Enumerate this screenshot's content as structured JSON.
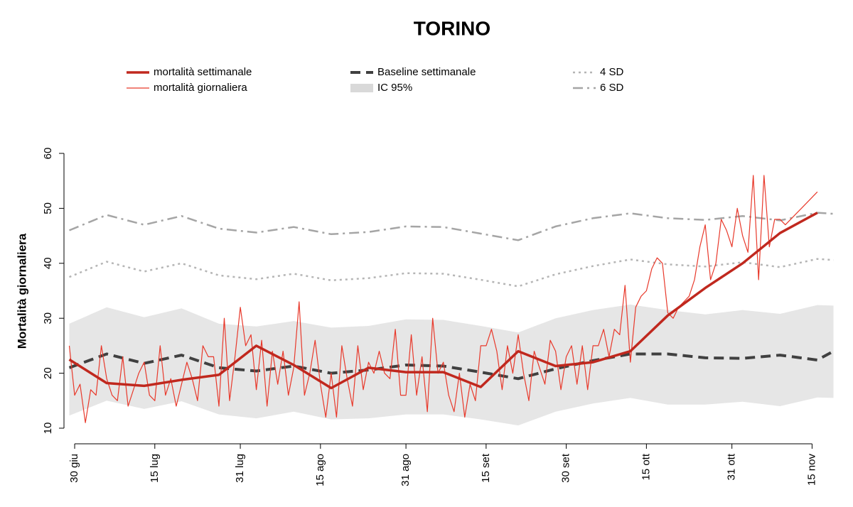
{
  "chart_data": {
    "type": "line",
    "title": "TORINO",
    "ylabel": "Mortalità giornaliera",
    "xlim": [
      "06-28",
      "11-20"
    ],
    "ylim": [
      10,
      60
    ],
    "yticks": [
      10,
      20,
      30,
      40,
      50,
      60
    ],
    "xticks": [
      {
        "value": "06-30",
        "label": "30 giu"
      },
      {
        "value": "07-15",
        "label": "15 lug"
      },
      {
        "value": "07-31",
        "label": "31 lug"
      },
      {
        "value": "08-15",
        "label": "15 ago"
      },
      {
        "value": "08-31",
        "label": "31 ago"
      },
      {
        "value": "09-15",
        "label": "15 set"
      },
      {
        "value": "09-30",
        "label": "30 set"
      },
      {
        "value": "10-15",
        "label": "15 ott"
      },
      {
        "value": "10-31",
        "label": "31 ott"
      },
      {
        "value": "11-15",
        "label": "15 nov"
      }
    ],
    "series": [
      {
        "name": "mortalità settimanale",
        "color": "#c0281e",
        "style": "solid",
        "width": 3.5,
        "x": [
          "06-29",
          "07-06",
          "07-13",
          "07-20",
          "07-27",
          "08-03",
          "08-10",
          "08-17",
          "08-24",
          "08-31",
          "09-07",
          "09-14",
          "09-21",
          "09-28",
          "10-05",
          "10-12",
          "10-19",
          "10-26",
          "11-02",
          "11-09",
          "11-16"
        ],
        "values": [
          22.5,
          18.2,
          17.7,
          18.8,
          19.7,
          25,
          21.5,
          17.3,
          21,
          20.2,
          20.2,
          17.5,
          24,
          21.3,
          22,
          24,
          30.5,
          35.5,
          40,
          45.5,
          49.2
        ]
      },
      {
        "name": "mortalità giornaliera",
        "color": "#e8392b",
        "style": "solid",
        "width": 1.2,
        "x": [
          "06-29",
          "06-30",
          "07-01",
          "07-02",
          "07-03",
          "07-04",
          "07-05",
          "07-06",
          "07-07",
          "07-08",
          "07-09",
          "07-10",
          "07-11",
          "07-12",
          "07-13",
          "07-14",
          "07-15",
          "07-16",
          "07-17",
          "07-18",
          "07-19",
          "07-20",
          "07-21",
          "07-22",
          "07-23",
          "07-24",
          "07-25",
          "07-26",
          "07-27",
          "07-28",
          "07-29",
          "07-30",
          "07-31",
          "08-01",
          "08-02",
          "08-03",
          "08-04",
          "08-05",
          "08-06",
          "08-07",
          "08-08",
          "08-09",
          "08-10",
          "08-11",
          "08-12",
          "08-13",
          "08-14",
          "08-15",
          "08-16",
          "08-17",
          "08-18",
          "08-19",
          "08-20",
          "08-21",
          "08-22",
          "08-23",
          "08-24",
          "08-25",
          "08-26",
          "08-27",
          "08-28",
          "08-29",
          "08-30",
          "08-31",
          "09-01",
          "09-02",
          "09-03",
          "09-04",
          "09-05",
          "09-06",
          "09-07",
          "09-08",
          "09-09",
          "09-10",
          "09-11",
          "09-12",
          "09-13",
          "09-14",
          "09-15",
          "09-16",
          "09-17",
          "09-18",
          "09-19",
          "09-20",
          "09-21",
          "09-22",
          "09-23",
          "09-24",
          "09-25",
          "09-26",
          "09-27",
          "09-28",
          "09-29",
          "09-30",
          "10-01",
          "10-02",
          "10-03",
          "10-04",
          "10-05",
          "10-06",
          "10-07",
          "10-08",
          "10-09",
          "10-10",
          "10-11",
          "10-12",
          "10-13",
          "10-14",
          "10-15",
          "10-16",
          "10-17",
          "10-18",
          "10-19",
          "10-20",
          "10-21",
          "10-22",
          "10-23",
          "10-24",
          "10-25",
          "10-26",
          "10-27",
          "10-28",
          "10-29",
          "10-30",
          "10-31",
          "11-01",
          "11-02",
          "11-03",
          "11-04",
          "11-05",
          "11-06",
          "11-07",
          "11-08",
          "11-09",
          "11-10",
          "11-11",
          "11-12",
          "11-13",
          "11-14",
          "11-15",
          "11-16"
        ],
        "values": [
          25,
          16,
          18,
          11,
          17,
          16,
          25,
          19,
          16,
          15,
          23,
          14,
          17,
          20,
          22,
          16,
          15,
          25,
          16,
          19,
          14,
          18,
          22,
          19,
          15,
          25,
          23,
          23,
          14,
          30,
          15,
          23,
          32,
          25,
          27,
          17,
          26,
          14,
          24,
          18,
          24,
          16,
          21,
          33,
          16,
          20,
          26,
          18,
          12,
          20,
          12,
          25,
          19,
          14,
          25,
          17,
          22,
          20,
          24,
          20,
          19,
          28,
          16,
          16,
          27,
          16,
          23,
          13,
          30,
          20,
          22,
          16,
          13,
          20,
          12,
          18,
          15,
          25,
          25,
          28,
          24,
          17,
          25,
          20,
          27,
          20,
          15,
          24,
          21,
          18,
          26,
          24,
          17,
          23,
          25,
          18,
          25,
          17,
          25,
          25,
          28,
          23,
          28,
          27,
          36,
          22,
          32,
          34,
          35,
          39,
          41,
          40,
          31,
          30,
          32,
          33,
          34,
          37,
          43,
          47,
          37,
          40,
          48,
          46,
          43,
          50,
          45,
          42,
          56,
          37,
          56,
          43,
          48,
          48,
          47,
          48,
          49,
          50,
          51,
          52,
          53
        ]
      },
      {
        "name": "Baseline settimanale",
        "color": "#404040",
        "style": "dashed",
        "width": 4,
        "x": [
          "06-29",
          "07-06",
          "07-13",
          "07-20",
          "07-27",
          "08-03",
          "08-10",
          "08-17",
          "08-24",
          "08-31",
          "09-07",
          "09-14",
          "09-21",
          "09-28",
          "10-05",
          "10-12",
          "10-19",
          "10-26",
          "11-02",
          "11-09",
          "11-16",
          "11-19"
        ],
        "values": [
          21,
          23.5,
          21.8,
          23.3,
          21,
          20.4,
          21.3,
          20,
          20.6,
          21.5,
          21.3,
          20.2,
          19,
          20.8,
          22.3,
          23.5,
          23.5,
          22.8,
          22.7,
          23.3,
          22.4,
          24
        ]
      },
      {
        "name": "IC 95%",
        "color": "#e6e6e6",
        "style": "band",
        "x": [
          "06-29",
          "07-06",
          "07-13",
          "07-20",
          "07-27",
          "08-03",
          "08-10",
          "08-17",
          "08-24",
          "08-31",
          "09-07",
          "09-14",
          "09-21",
          "09-28",
          "10-05",
          "10-12",
          "10-19",
          "10-26",
          "11-02",
          "11-09",
          "11-16",
          "11-19"
        ],
        "upper": [
          29,
          32,
          30.2,
          31.8,
          29,
          28.5,
          29.5,
          28.3,
          28.6,
          29.8,
          29.7,
          28.6,
          27.4,
          30,
          31.5,
          32.5,
          31.5,
          30.7,
          31.5,
          30.8,
          32.4,
          32.3
        ],
        "lower": [
          12.3,
          15,
          13.5,
          14.9,
          12.5,
          11.8,
          13,
          11.6,
          11.8,
          12.5,
          12.5,
          11.6,
          10.5,
          13,
          14.5,
          15.5,
          14.3,
          14.3,
          14.8,
          14,
          15.6,
          15.5
        ]
      },
      {
        "name": "4 SD",
        "color": "#b5b5b5",
        "style": "dotted",
        "width": 2.5,
        "x": [
          "06-29",
          "07-06",
          "07-13",
          "07-20",
          "07-27",
          "08-03",
          "08-10",
          "08-17",
          "08-24",
          "08-31",
          "09-07",
          "09-14",
          "09-21",
          "09-28",
          "10-05",
          "10-12",
          "10-19",
          "10-26",
          "11-02",
          "11-09",
          "11-16",
          "11-19"
        ],
        "values": [
          37.5,
          40.3,
          38.5,
          40,
          37.8,
          37.1,
          38.1,
          36.9,
          37.3,
          38.2,
          38.1,
          37,
          35.8,
          38,
          39.5,
          40.7,
          39.8,
          39.4,
          40.2,
          39.3,
          40.8,
          40.6
        ]
      },
      {
        "name": "6 SD",
        "color": "#a5a5a5",
        "style": "dashdot",
        "width": 2.5,
        "x": [
          "06-29",
          "07-06",
          "07-13",
          "07-20",
          "07-27",
          "08-03",
          "08-10",
          "08-17",
          "08-24",
          "08-31",
          "09-07",
          "09-14",
          "09-21",
          "09-28",
          "10-05",
          "10-12",
          "10-19",
          "10-26",
          "11-02",
          "11-09",
          "11-16",
          "11-19"
        ],
        "values": [
          46,
          48.8,
          47,
          48.6,
          46.3,
          45.6,
          46.6,
          45.3,
          45.7,
          46.7,
          46.6,
          45.4,
          44.2,
          46.7,
          48.2,
          49.1,
          48.2,
          47.9,
          48.6,
          47.8,
          49.2,
          49
        ]
      }
    ]
  }
}
